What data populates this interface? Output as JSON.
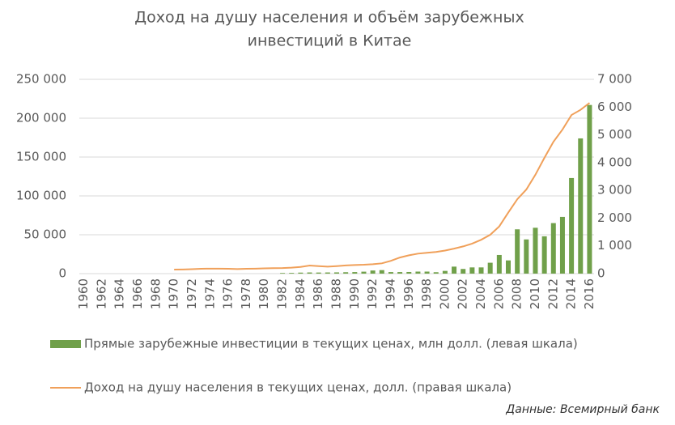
{
  "chart_data": {
    "type": "bar_line",
    "title": [
      "Доход на душу населения и объём зарубежных",
      "инвестиций в Китае"
    ],
    "categories": [
      "1960",
      null,
      "1962",
      null,
      "1964",
      null,
      "1966",
      null,
      "1968",
      null,
      "1970",
      null,
      "1972",
      null,
      "1974",
      null,
      "1976",
      null,
      "1978",
      null,
      "1980",
      null,
      "1982",
      null,
      "1984",
      null,
      "1986",
      null,
      "1988",
      null,
      "1990",
      null,
      "1992",
      null,
      "1994",
      null,
      "1996",
      null,
      "1998",
      null,
      "2000",
      null,
      "2002",
      null,
      "2004",
      null,
      "2006",
      null,
      "2008",
      null,
      "2010",
      null,
      "2012",
      null,
      "2014",
      null,
      "2016"
    ],
    "series": [
      {
        "name": "Прямые зарубежные инвестиции в текущих ценах, млн долл. (левая шкала)",
        "type": "bar",
        "color": "#70a04a",
        "axis": "y",
        "values": [
          null,
          null,
          null,
          null,
          null,
          null,
          null,
          null,
          null,
          null,
          null,
          null,
          null,
          null,
          null,
          null,
          null,
          null,
          null,
          null,
          null,
          null,
          800,
          900,
          1300,
          1500,
          1400,
          1500,
          1600,
          1800,
          2000,
          2500,
          4000,
          4500,
          2000,
          2000,
          2100,
          2600,
          2600,
          1800,
          3500,
          9000,
          6000,
          8000,
          8000,
          14000,
          24000,
          17000,
          57000,
          44000,
          59000,
          48000,
          65000,
          73000,
          123000,
          174000,
          217000
        ]
      },
      {
        "name": "Доход на душу населения в текущих ценах, долл. (правая шкала)",
        "type": "line",
        "color": "#f0a05a",
        "axis": "y2",
        "values": [
          null,
          null,
          null,
          null,
          null,
          null,
          null,
          null,
          null,
          null,
          146,
          150,
          160,
          175,
          180,
          180,
          175,
          165,
          175,
          180,
          190,
          195,
          200,
          215,
          240,
          290,
          270,
          250,
          270,
          295,
          310,
          320,
          340,
          370,
          460,
          580,
          660,
          720,
          750,
          780,
          830,
          900,
          980,
          1080,
          1220,
          1400,
          1700,
          2200,
          2680,
          3030,
          3560,
          4170,
          4750,
          5190,
          5715,
          5900,
          6150
        ]
      }
    ],
    "ylim": [
      0,
      250000
    ],
    "yticks": [
      0,
      {
        "value": 50000,
        "label": "50 000"
      },
      {
        "value": 100000,
        "label": "100 000"
      },
      {
        "value": 150000,
        "label": "150 000"
      },
      {
        "value": 200000,
        "label": "200 000"
      },
      {
        "value": 250000,
        "label": "250 000"
      }
    ],
    "y2lim": [
      0,
      7000
    ],
    "y2ticks": [
      0,
      {
        "value": 1000,
        "label": "1 000"
      },
      {
        "value": 2000,
        "label": "2 000"
      },
      {
        "value": 3000,
        "label": "3 000"
      },
      {
        "value": 4000,
        "label": "4 000"
      },
      {
        "value": 5000,
        "label": "5 000"
      },
      {
        "value": 6000,
        "label": "6 000"
      },
      {
        "value": 7000,
        "label": "7 000"
      }
    ],
    "grid": true,
    "legend": "bottom",
    "source": "Данные: Всемирный банк"
  }
}
